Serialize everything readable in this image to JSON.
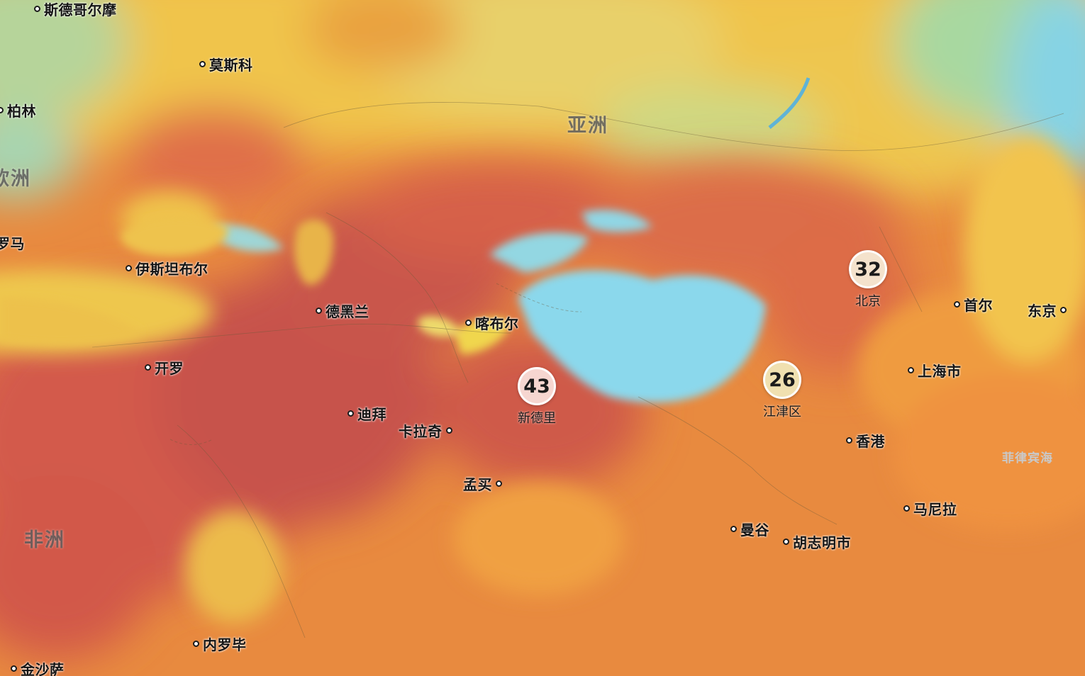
{
  "colors": {
    "hot": "#d2584a",
    "very_hot": "#c4524d",
    "warm": "#e58a3e",
    "mild": "#f0c24a",
    "cool": "#a9d59a",
    "cold": "#86d6e8",
    "bubble_hot": "#f6d6d0",
    "bubble_warm": "#f4e2cc",
    "bubble_mild": "#f0e0b0"
  },
  "regions": {
    "asia": "亚洲",
    "europe": "欧洲",
    "africa": "非洲",
    "philippine_sea": "菲律宾海"
  },
  "cities": {
    "stockholm": "斯德哥尔摩",
    "moscow": "莫斯科",
    "berlin": "柏林",
    "rome": "罗马",
    "istanbul": "伊斯坦布尔",
    "tehran": "德黑兰",
    "kabul": "喀布尔",
    "cairo": "开罗",
    "dubai": "迪拜",
    "karachi": "卡拉奇",
    "mumbai": "孟买",
    "seoul": "首尔",
    "tokyo": "东京",
    "shanghai": "上海市",
    "hong_kong": "香港",
    "manila": "马尼拉",
    "bangkok": "曼谷",
    "ho_chi_minh": "胡志明市",
    "nairobi": "内罗毕",
    "kinshasa": "金沙萨"
  },
  "markers": {
    "new_delhi": {
      "value": "43",
      "name": "新德里"
    },
    "beijing": {
      "value": "32",
      "name": "北京"
    },
    "jiangjin": {
      "value": "26",
      "name": "江津区"
    }
  }
}
